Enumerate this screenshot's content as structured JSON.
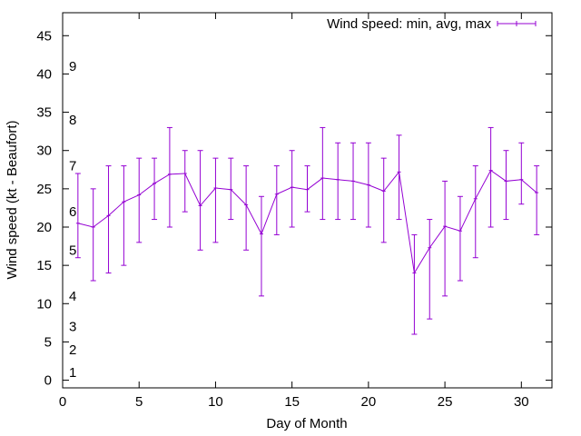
{
  "chart_data": {
    "type": "line",
    "title": "",
    "xlabel": "Day of Month",
    "ylabel": "Wind speed (kt - Beaufort)",
    "xlim": [
      0,
      32
    ],
    "ylim": [
      -1,
      48
    ],
    "x_ticks": [
      0,
      5,
      10,
      15,
      20,
      25,
      30
    ],
    "y_ticks": [
      0,
      5,
      10,
      15,
      20,
      25,
      30,
      35,
      40,
      45
    ],
    "grid": false,
    "legend_position": "top-right",
    "beaufort_labels": [
      {
        "label": "1",
        "y": 1
      },
      {
        "label": "2",
        "y": 4
      },
      {
        "label": "3",
        "y": 7
      },
      {
        "label": "4",
        "y": 11
      },
      {
        "label": "5",
        "y": 17
      },
      {
        "label": "6",
        "y": 22
      },
      {
        "label": "7",
        "y": 28
      },
      {
        "label": "8",
        "y": 34
      },
      {
        "label": "9",
        "y": 41
      }
    ],
    "series": [
      {
        "name": "Wind speed: min, avg, max",
        "color": "#9400d3",
        "x": [
          1,
          2,
          3,
          4,
          5,
          6,
          7,
          8,
          9,
          10,
          11,
          12,
          13,
          14,
          15,
          16,
          17,
          18,
          19,
          20,
          21,
          22,
          23,
          24,
          25,
          26,
          27,
          28,
          29,
          30,
          31
        ],
        "avg": [
          20.5,
          20,
          21.5,
          23.3,
          24.2,
          25.7,
          26.9,
          27,
          22.8,
          25.1,
          24.9,
          22.9,
          19.1,
          24.3,
          25.2,
          24.9,
          26.4,
          26.2,
          26,
          25.5,
          24.7,
          27.2,
          14,
          17.3,
          20.1,
          19.5,
          23.7,
          27.4,
          26,
          26.2,
          24.5
        ],
        "min": [
          16,
          13,
          14,
          15,
          18,
          21,
          20,
          22,
          17,
          18,
          21,
          17,
          11,
          19,
          20,
          22,
          21,
          21,
          21,
          20,
          18,
          21,
          6,
          8,
          11,
          13,
          16,
          20,
          21,
          23,
          19
        ],
        "max": [
          27,
          25,
          28,
          28,
          29,
          29,
          33,
          30,
          30,
          29,
          29,
          28,
          24,
          28,
          30,
          28,
          33,
          31,
          31,
          31,
          29,
          32,
          19,
          21,
          26,
          24,
          28,
          33,
          30,
          31,
          28
        ]
      }
    ]
  }
}
